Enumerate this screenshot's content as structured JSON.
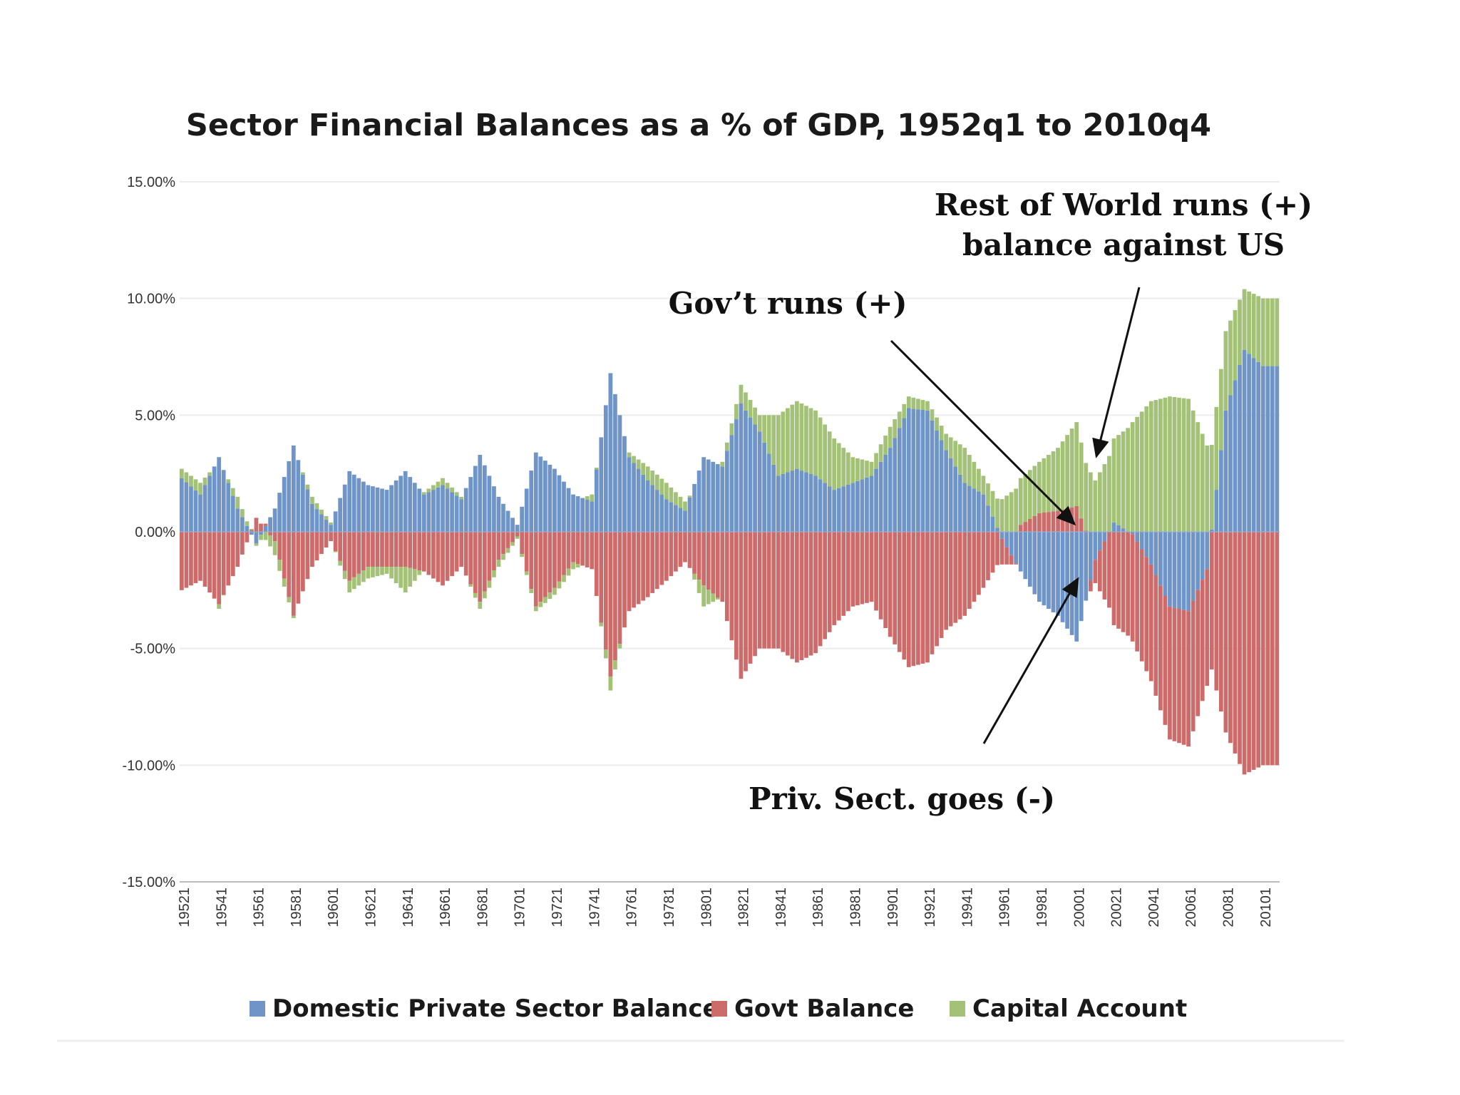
{
  "chart_data": {
    "type": "bar",
    "stacking": "diverging",
    "title": "Sector Financial Balances as a % of GDP, 1952q1 to 2010q4",
    "xlabel": "",
    "ylabel": "",
    "ylim": [
      -15,
      15
    ],
    "yticks": [
      15,
      10,
      5,
      0,
      -5,
      -10,
      -15
    ],
    "ytick_labels": [
      "15.00%",
      "10.00%",
      "5.00%",
      "0.00%",
      "-5.00%",
      "-10.00%",
      "-15.00%"
    ],
    "x_start_year": 1952,
    "x_end_year": 2010,
    "quarters_per_year": 4,
    "xtick_labels": [
      "19521",
      "19541",
      "19561",
      "19581",
      "19601",
      "19621",
      "19641",
      "19661",
      "19681",
      "19701",
      "19721",
      "19741",
      "19761",
      "19781",
      "19801",
      "19821",
      "19841",
      "19861",
      "19881",
      "19901",
      "19921",
      "19941",
      "19961",
      "19981",
      "20001",
      "20021",
      "20041",
      "20061",
      "20081",
      "20101"
    ],
    "years": [
      1952,
      1953,
      1954,
      1955,
      1956,
      1957,
      1958,
      1959,
      1960,
      1961,
      1962,
      1963,
      1964,
      1965,
      1966,
      1967,
      1968,
      1969,
      1970,
      1971,
      1972,
      1973,
      1974,
      1975,
      1976,
      1977,
      1978,
      1979,
      1980,
      1981,
      1982,
      1983,
      1984,
      1985,
      1986,
      1987,
      1988,
      1989,
      1990,
      1991,
      1992,
      1993,
      1994,
      1995,
      1996,
      1997,
      1998,
      1999,
      2000,
      2001,
      2002,
      2003,
      2004,
      2005,
      2006,
      2007,
      2008,
      2009,
      2010
    ],
    "series": [
      {
        "name": "Domestic Private Sector Balance",
        "color": "#6f94c8",
        "values": [
          2.3,
          1.6,
          3.2,
          1.0,
          -0.5,
          1.0,
          3.7,
          1.2,
          0.3,
          2.6,
          2.0,
          1.8,
          2.6,
          1.6,
          2.0,
          1.4,
          3.3,
          1.5,
          0.3,
          3.4,
          2.7,
          1.6,
          1.3,
          6.8,
          3.2,
          2.2,
          1.4,
          0.9,
          3.2,
          2.8,
          5.5,
          4.3,
          2.4,
          2.7,
          2.4,
          1.8,
          2.1,
          2.4,
          3.6,
          5.3,
          5.2,
          3.5,
          2.1,
          1.6,
          -0.3,
          -1.7,
          -3.0,
          -3.6,
          -4.7,
          -1.2,
          0.4,
          -0.1,
          -1.4,
          -3.2,
          -3.4,
          -1.6,
          5.2,
          7.8,
          7.1
        ]
      },
      {
        "name": "Govt Balance",
        "color": "#cd6b6b",
        "values": [
          -2.5,
          -2.1,
          -3.1,
          -1.5,
          0.6,
          -0.4,
          -3.6,
          -1.5,
          -0.4,
          -2.1,
          -1.5,
          -1.5,
          -1.5,
          -1.7,
          -2.3,
          -1.5,
          -3.0,
          -1.2,
          -0.2,
          -3.2,
          -2.4,
          -1.3,
          -1.6,
          -6.2,
          -3.4,
          -2.8,
          -2.1,
          -1.3,
          -2.3,
          -3.0,
          -6.3,
          -5.0,
          -5.0,
          -5.6,
          -5.2,
          -4.0,
          -3.2,
          -3.0,
          -4.5,
          -5.8,
          -5.6,
          -4.2,
          -3.6,
          -2.4,
          -1.1,
          0.3,
          0.8,
          0.9,
          1.1,
          -1.0,
          -4.0,
          -4.6,
          -5.0,
          -5.7,
          -5.8,
          -5.0,
          -8.6,
          -10.4,
          -10.0
        ]
      },
      {
        "name": "Capital Account",
        "color": "#a3c277",
        "values": [
          0.4,
          0.5,
          -0.2,
          0.5,
          -0.1,
          -0.6,
          -0.1,
          0.3,
          0.1,
          -0.5,
          -0.5,
          -0.3,
          -1.1,
          0.1,
          0.3,
          0.1,
          -0.3,
          -0.3,
          -0.1,
          -0.2,
          -0.3,
          -0.3,
          0.3,
          -0.6,
          0.2,
          0.6,
          0.7,
          0.4,
          -0.9,
          0.2,
          0.8,
          0.7,
          2.6,
          2.9,
          2.8,
          2.2,
          1.1,
          0.6,
          0.9,
          0.5,
          0.4,
          0.7,
          1.5,
          0.8,
          1.4,
          2.0,
          2.2,
          2.7,
          3.6,
          2.2,
          3.6,
          4.7,
          5.6,
          5.8,
          5.7,
          3.7,
          3.4,
          2.6,
          2.9
        ]
      }
    ],
    "annotations": [
      {
        "lines": [
          "Rest of World runs (+)",
          "balance against US"
        ]
      },
      {
        "lines": [
          "Gov’t runs (+)"
        ]
      },
      {
        "lines": [
          "Priv. Sect. goes (-)"
        ]
      }
    ],
    "legend": {
      "placement": "bottom-center"
    }
  }
}
